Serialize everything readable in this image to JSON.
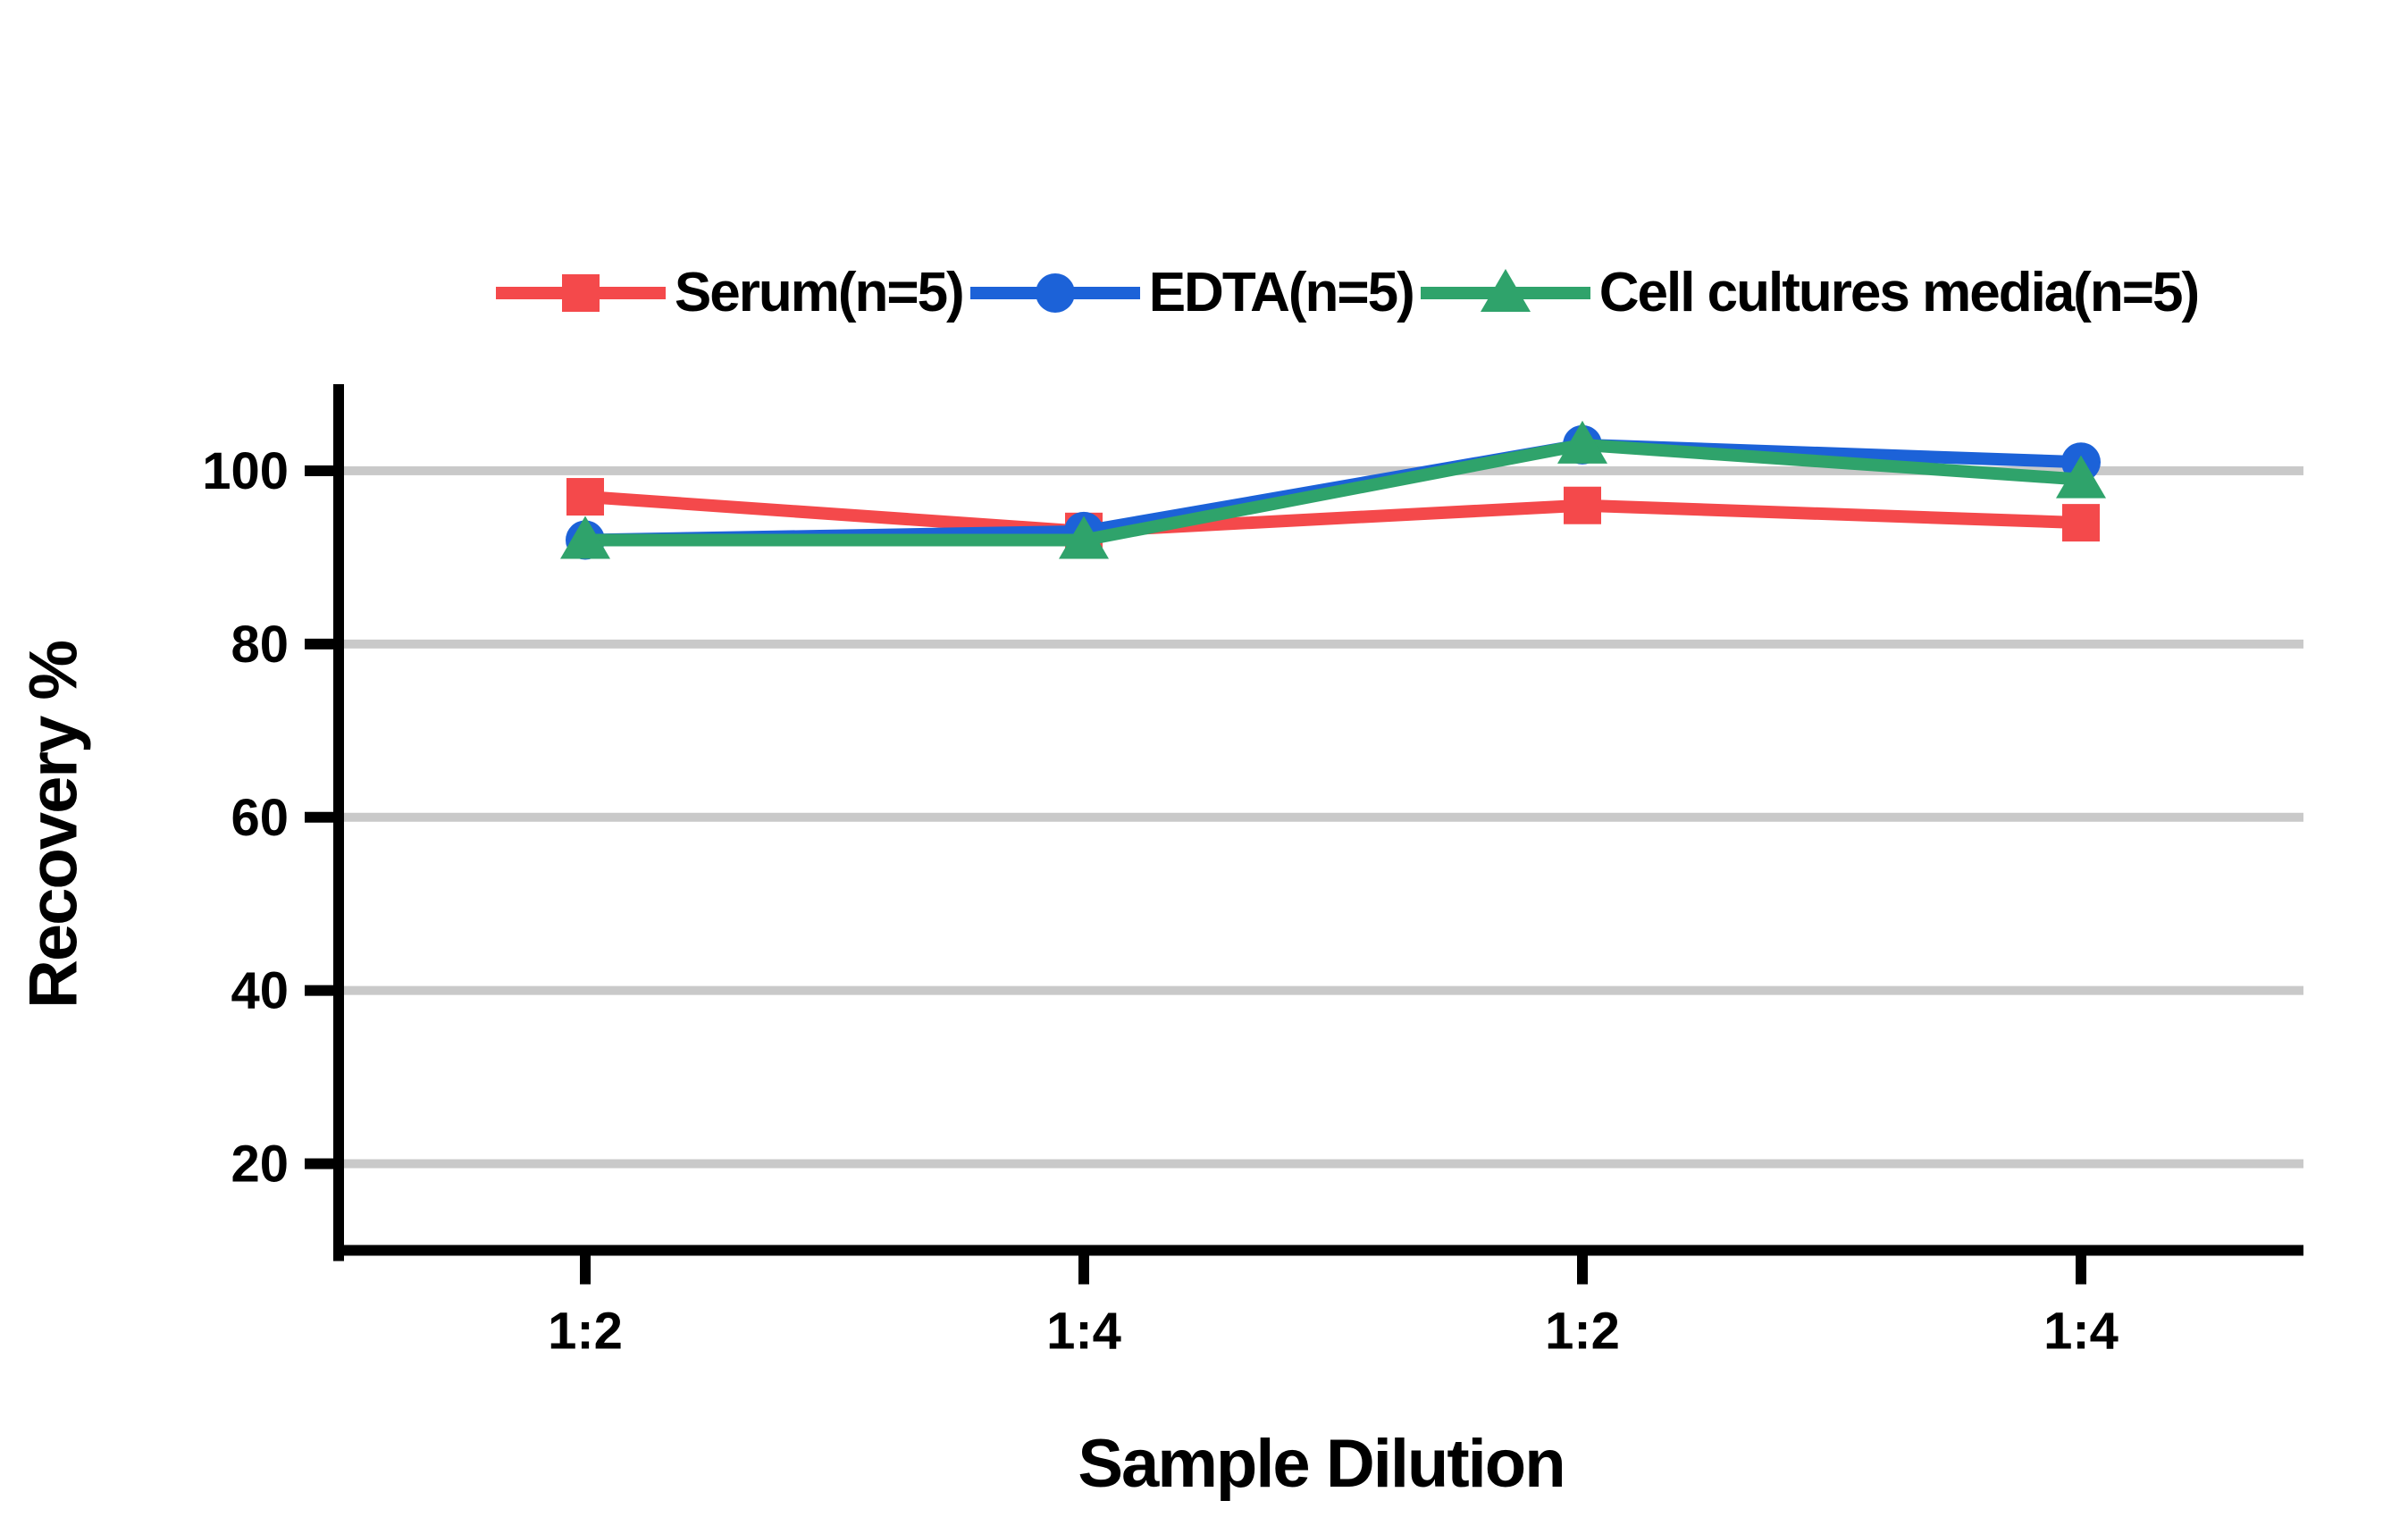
{
  "chart_data": {
    "type": "line",
    "title": "",
    "xlabel": "Sample Dilution",
    "ylabel": "Recovery %",
    "categories": [
      "1:2",
      "1:4",
      "1:2",
      "1:4"
    ],
    "series": [
      {
        "name": "Serum(n=5)",
        "color": "#F4494B",
        "marker": "square",
        "values": [
          97,
          93,
          96,
          94
        ]
      },
      {
        "name": "EDTA(n=5)",
        "color": "#1C62D8",
        "marker": "circle",
        "values": [
          92,
          93,
          103,
          101
        ]
      },
      {
        "name": "Cell cultures media(n=5)",
        "color": "#2FA36B",
        "marker": "triangle",
        "values": [
          92,
          92,
          103,
          99
        ]
      }
    ],
    "ylim": [
      10,
      110
    ],
    "yticks": [
      20,
      40,
      60,
      80,
      100
    ],
    "grid": true,
    "gridline_color": "#C9C9C9",
    "axis_color": "#000000",
    "background": "#FFFFFF",
    "legend_position": "top"
  }
}
